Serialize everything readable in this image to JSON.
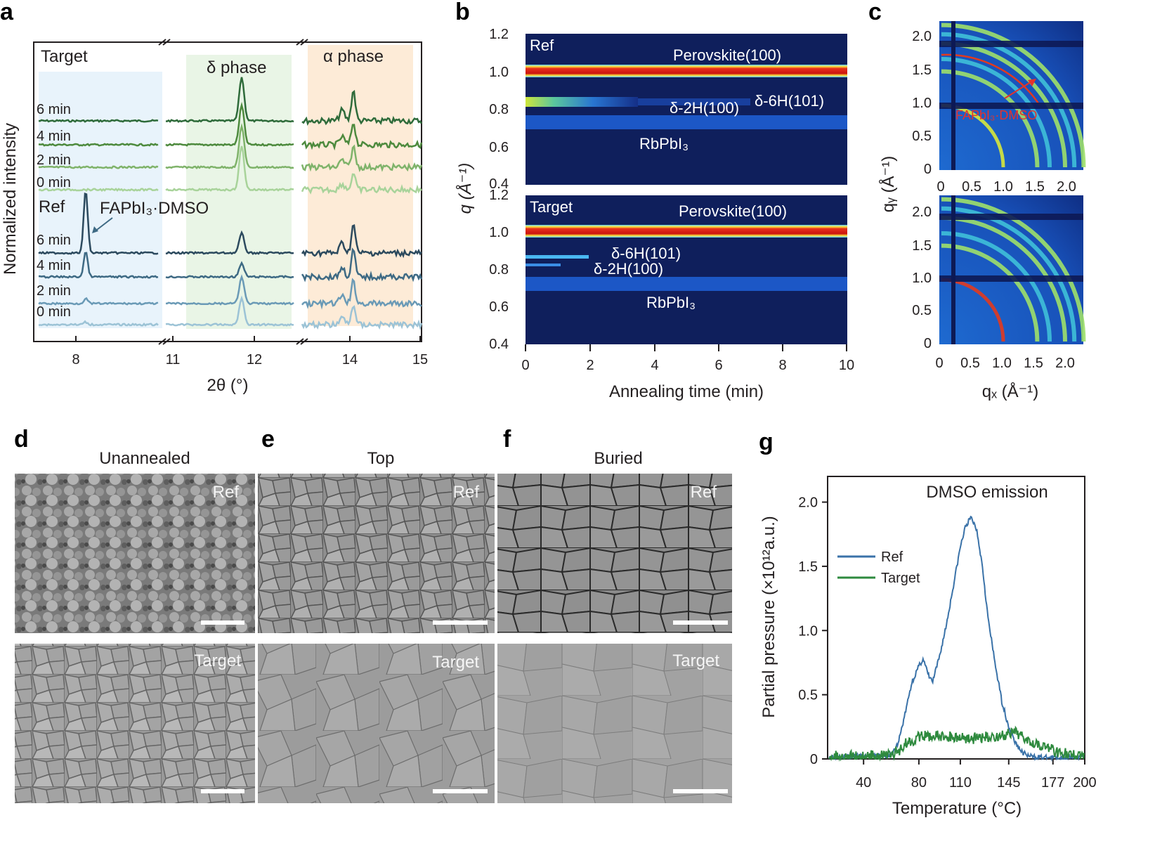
{
  "panels": {
    "a": "a",
    "b": "b",
    "c": "c",
    "d": "d",
    "e": "e",
    "f": "f",
    "g": "g"
  },
  "colors": {
    "target_dark": "#2e6b3a",
    "target_mid": "#4d8a3d",
    "target_light": "#7fb36a",
    "target_pale": "#a8d39a",
    "ref_dark": "#2c4a5e",
    "ref_mid": "#3e6a84",
    "ref_light": "#6a9ab6",
    "ref_pale": "#9cc3d6",
    "region_blue": "#e8f3fb",
    "region_green": "#e9f5e6",
    "region_orange": "#fdebd7",
    "heatmap_bg": "#0f1f5c",
    "ref_line": "#3a72a8",
    "target_line": "#2e8a3e"
  },
  "panel_a": {
    "ylabel": "Normalized intensity",
    "xlabel": "2θ (°)",
    "xticks": [
      "8",
      "11",
      "12",
      "14",
      "15"
    ],
    "group_target": "Target",
    "group_ref": "Ref",
    "region_delta": "δ phase",
    "region_alpha": "α phase",
    "annotation": "FAPbI₃·DMSO",
    "times": [
      "6 min",
      "4 min",
      "2 min",
      "0 min"
    ],
    "traces": [
      {
        "group": "Target",
        "time": "6 min",
        "peak_8": 0.0,
        "peak_12": 1.0,
        "peak_14": 0.75
      },
      {
        "group": "Target",
        "time": "4 min",
        "peak_8": 0.0,
        "peak_12": 0.9,
        "peak_14": 0.55
      },
      {
        "group": "Target",
        "time": "2 min",
        "peak_8": 0.0,
        "peak_12": 0.95,
        "peak_14": 0.5
      },
      {
        "group": "Target",
        "time": "0 min",
        "peak_8": 0.0,
        "peak_12": 1.0,
        "peak_14": 0.4
      },
      {
        "group": "Ref",
        "time": "6 min",
        "peak_8": 1.0,
        "peak_12": 0.45,
        "peak_14": 0.7
      },
      {
        "group": "Ref",
        "time": "4 min",
        "peak_8": 0.4,
        "peak_12": 0.3,
        "peak_14": 0.65
      },
      {
        "group": "Ref",
        "time": "2 min",
        "peak_8": 0.08,
        "peak_12": 0.6,
        "peak_14": 0.55
      },
      {
        "group": "Ref",
        "time": "0 min",
        "peak_8": 0.04,
        "peak_12": 0.6,
        "peak_14": 0.5
      }
    ]
  },
  "panel_b": {
    "ylabel": "q (Å⁻¹)",
    "xlabel": "Annealing time (min)",
    "xticks": [
      "0",
      "2",
      "4",
      "6",
      "8",
      "10"
    ],
    "yticks_top": [
      "1.2",
      "1.0",
      "0.8",
      "0.6",
      "0.4"
    ],
    "yticks_bottom": [
      "1.2",
      "1.0",
      "0.8",
      "0.6",
      "0.4"
    ],
    "ref": {
      "title": "Ref",
      "perovskite": "Perovskite(100)",
      "d2h": "δ-2H(100)",
      "d6h": "δ-6H(101)",
      "rbpbi": "RbPbI₃"
    },
    "target": {
      "title": "Target",
      "perovskite": "Perovskite(100)",
      "d6h": "δ-6H(101)",
      "d2h": "δ-2H(100)",
      "rbpbi": "RbPbI₃"
    }
  },
  "panel_c": {
    "ylabel": "qᵧ (Å⁻¹)",
    "xlabel": "qₓ (Å⁻¹)",
    "xticks": [
      "0",
      "0.5",
      "1.0",
      "1.5",
      "2.0"
    ],
    "yticks": [
      "2.0",
      "1.5",
      "1.0",
      "0.5",
      "0"
    ],
    "annotation": "FAPbI₃·DMSO",
    "ring_q": [
      1.0,
      1.55,
      1.75,
      2.0,
      2.15,
      2.3
    ]
  },
  "sem": {
    "d_title": "Unannealed",
    "e_title": "Top",
    "f_title": "Buried",
    "ref_label": "Ref",
    "target_label": "Target"
  },
  "chart_data": {
    "type": "line",
    "title": "DMSO emission",
    "xlabel": "Temperature (°C)",
    "ylabel": "Partial pressure (×10¹²a.u.)",
    "xticks": [
      "40",
      "80",
      "110",
      "145",
      "177",
      "200"
    ],
    "yticks": [
      "0",
      "0.5",
      "1.0",
      "1.5",
      "2.0"
    ],
    "xlim": [
      15,
      200
    ],
    "ylim": [
      0,
      2.2
    ],
    "legend_position": "center-left",
    "series": [
      {
        "name": "Ref",
        "x": [
          15,
          40,
          60,
          65,
          70,
          75,
          80,
          83,
          87,
          90,
          95,
          100,
          105,
          110,
          114,
          118,
          122,
          126,
          130,
          135,
          140,
          145,
          150,
          155,
          160,
          170,
          200
        ],
        "y": [
          0.02,
          0.02,
          0.03,
          0.12,
          0.35,
          0.6,
          0.72,
          0.78,
          0.65,
          0.6,
          0.8,
          1.05,
          1.35,
          1.65,
          1.82,
          1.88,
          1.78,
          1.5,
          1.1,
          0.75,
          0.45,
          0.25,
          0.12,
          0.05,
          0.02,
          0.01,
          0.01
        ]
      },
      {
        "name": "Target",
        "x": [
          15,
          40,
          60,
          65,
          70,
          80,
          90,
          100,
          110,
          120,
          130,
          140,
          150,
          155,
          160,
          170,
          180,
          190,
          200
        ],
        "y": [
          0.02,
          0.02,
          0.03,
          0.06,
          0.12,
          0.17,
          0.18,
          0.17,
          0.17,
          0.16,
          0.17,
          0.18,
          0.2,
          0.18,
          0.15,
          0.1,
          0.06,
          0.03,
          0.02
        ]
      }
    ]
  }
}
